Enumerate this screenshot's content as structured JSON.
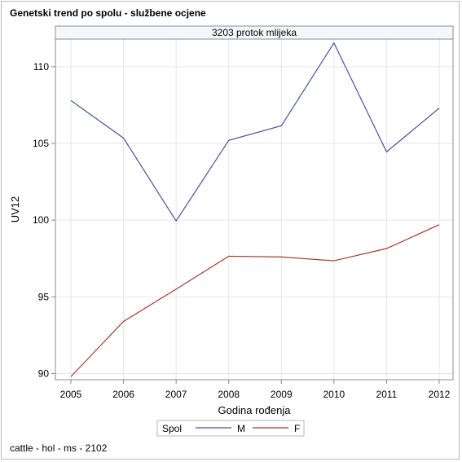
{
  "header": {
    "title": "Genetski trend po spolu - službene ocjene"
  },
  "footer": {
    "note": "cattle - hol - ms - 2102"
  },
  "chart_data": {
    "type": "line",
    "panel_title": "3203 protok mlijeka",
    "xlabel": "Godina rođenja",
    "ylabel": "UV12",
    "categories": [
      "2005",
      "2006",
      "2007",
      "2008",
      "2009",
      "2010",
      "2011",
      "2012"
    ],
    "ylim": [
      89.6,
      111.8
    ],
    "yticks": [
      90,
      95,
      100,
      105,
      110
    ],
    "grid": true,
    "legend": {
      "title": "Spol",
      "placement": "bottom"
    },
    "series": [
      {
        "name": "M",
        "color": "#445694",
        "values": [
          107.8,
          105.35,
          99.95,
          105.2,
          106.15,
          111.55,
          104.45,
          107.3
        ]
      },
      {
        "name": "F",
        "color": "#a23a2e",
        "values": [
          89.8,
          93.4,
          95.5,
          97.65,
          97.6,
          97.35,
          98.15,
          99.7
        ]
      }
    ]
  }
}
